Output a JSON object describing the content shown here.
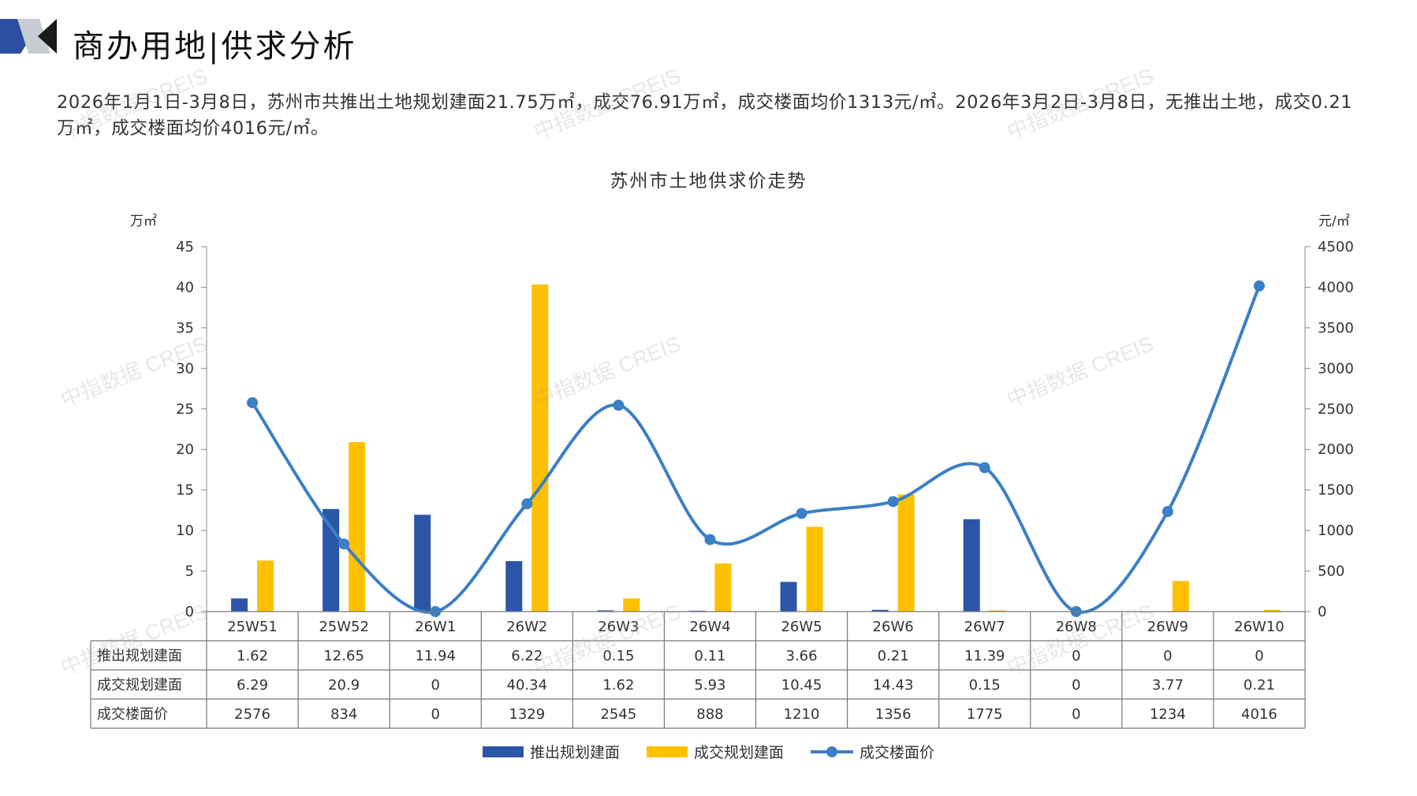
{
  "header": {
    "title": "商办用地|供求分析"
  },
  "summary": "2026年1月1日-3月8日，苏州市共推出土地规划建面21.75万㎡，成交76.91万㎡，成交楼面均价1313元/㎡。2026年3月2日-3月8日，无推出土地，成交0.21万㎡，成交楼面均价4016元/㎡。",
  "watermark": "中指数据 CREIS",
  "colors": {
    "supply": "#2b56a7",
    "deal": "#ffc000",
    "price": "#3b7fc6",
    "brand": "#2b4ea2"
  },
  "chart_data": {
    "type": "bar",
    "title": "苏州市土地供求价走势",
    "left_unit": "万㎡",
    "right_unit": "元/㎡",
    "categories": [
      "25W51",
      "25W52",
      "26W1",
      "26W2",
      "26W3",
      "26W4",
      "26W5",
      "26W6",
      "26W7",
      "26W8",
      "26W9",
      "26W10"
    ],
    "ylim_left": [
      0,
      45
    ],
    "yticks_left": [
      0,
      5,
      10,
      15,
      20,
      25,
      30,
      35,
      40,
      45
    ],
    "ylim_right": [
      0,
      4500
    ],
    "yticks_right": [
      0,
      500,
      1000,
      1500,
      2000,
      2500,
      3000,
      3500,
      4000,
      4500
    ],
    "series": [
      {
        "name": "推出规划建面",
        "kind": "bar",
        "axis": "left",
        "values": [
          1.62,
          12.65,
          11.94,
          6.22,
          0.15,
          0.11,
          3.66,
          0.21,
          11.39,
          0,
          0,
          0
        ],
        "labels": [
          "1.62",
          "12.65",
          "11.94",
          "6.22",
          "0.15",
          "0.11",
          "3.66",
          "0.21",
          "11.39",
          "0",
          "0",
          "0"
        ]
      },
      {
        "name": "成交规划建面",
        "kind": "bar",
        "axis": "left",
        "values": [
          6.29,
          20.9,
          0,
          40.34,
          1.62,
          5.93,
          10.45,
          14.43,
          0.15,
          0,
          3.77,
          0.21
        ],
        "labels": [
          "6.29",
          "20.9",
          "0",
          "40.34",
          "1.62",
          "5.93",
          "10.45",
          "14.43",
          "0.15",
          "0",
          "3.77",
          "0.21"
        ]
      },
      {
        "name": "成交楼面价",
        "kind": "line",
        "axis": "right",
        "values": [
          2576,
          834,
          0,
          1329,
          2545,
          888,
          1210,
          1356,
          1775,
          0,
          1234,
          4016
        ],
        "labels": [
          "2576",
          "834",
          "0",
          "1329",
          "2545",
          "888",
          "1210",
          "1356",
          "1775",
          "0",
          "1234",
          "4016"
        ]
      }
    ],
    "legend": [
      "推出规划建面",
      "成交规划建面",
      "成交楼面价"
    ],
    "legend_position": "bottom",
    "grid": false
  }
}
